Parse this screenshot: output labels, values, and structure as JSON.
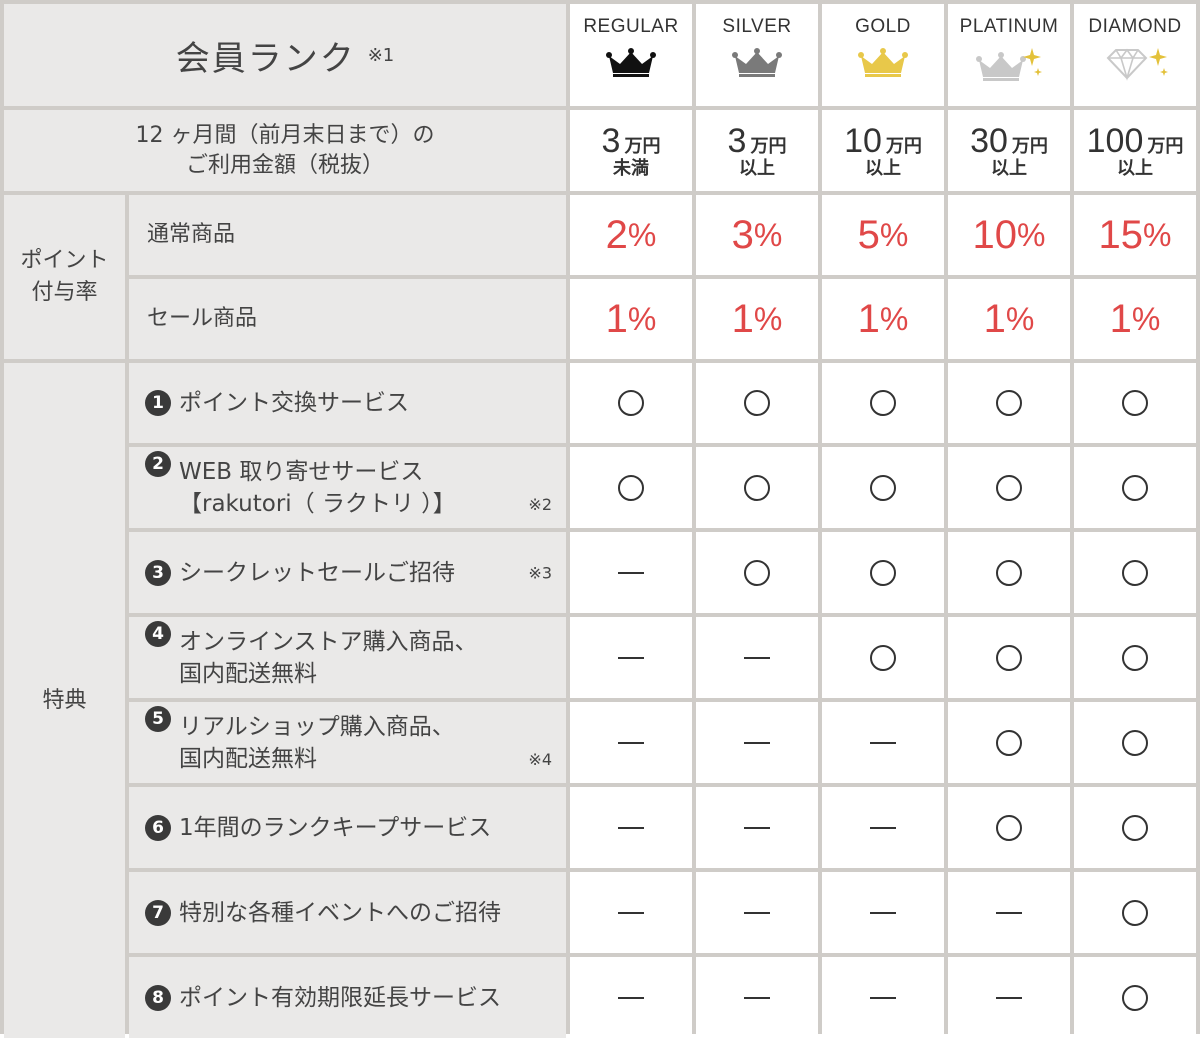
{
  "header": {
    "rank_title": "会員ランク",
    "rank_note": "※1",
    "ranks": [
      {
        "name": "REGULAR",
        "icon": "crown-icon",
        "color": "#111111"
      },
      {
        "name": "SILVER",
        "icon": "crown-icon",
        "color": "#7a7a7a"
      },
      {
        "name": "GOLD",
        "icon": "crown-icon",
        "color": "#e8c84a"
      },
      {
        "name": "PLATINUM",
        "icon": "crown-sparkle-icon",
        "color": "#c8c8c8"
      },
      {
        "name": "DIAMOND",
        "icon": "diamond-sparkle-icon",
        "color": "#d0d0d0"
      }
    ]
  },
  "amount": {
    "label_line1": "12 ヶ月間（前月末日まで）の",
    "label_line2": "ご利用金額（税抜）",
    "values": [
      {
        "num": "3",
        "unit": "万円",
        "cond": "未満"
      },
      {
        "num": "3",
        "unit": "万円",
        "cond": "以上"
      },
      {
        "num": "10",
        "unit": "万円",
        "cond": "以上"
      },
      {
        "num": "30",
        "unit": "万円",
        "cond": "以上"
      },
      {
        "num": "100",
        "unit": "万円",
        "cond": "以上"
      }
    ]
  },
  "points": {
    "label_line1": "ポイント",
    "label_line2": "付与率",
    "rows": [
      {
        "label": "通常商品",
        "rates": [
          "2",
          "3",
          "5",
          "10",
          "15"
        ]
      },
      {
        "label": "セール商品",
        "rates": [
          "1",
          "1",
          "1",
          "1",
          "1"
        ]
      }
    ],
    "pct": "%"
  },
  "benefits": {
    "label": "特典",
    "rows": [
      {
        "num": "1",
        "line1": "ポイント交換サービス",
        "line2": "",
        "note": "",
        "marks": [
          "o",
          "o",
          "o",
          "o",
          "o"
        ]
      },
      {
        "num": "2",
        "line1": "WEB 取り寄せサービス",
        "line2": "【rakutori（ ラクトリ ）】",
        "note": "※2",
        "marks": [
          "o",
          "o",
          "o",
          "o",
          "o"
        ]
      },
      {
        "num": "3",
        "line1": "シークレットセールご招待",
        "line2": "",
        "note": "※3",
        "marks": [
          "-",
          "o",
          "o",
          "o",
          "o"
        ]
      },
      {
        "num": "4",
        "line1": "オンラインストア購入商品、",
        "line2": "国内配送無料",
        "note": "",
        "marks": [
          "-",
          "-",
          "o",
          "o",
          "o"
        ]
      },
      {
        "num": "5",
        "line1": "リアルショップ購入商品、",
        "line2": "国内配送無料",
        "note": "※4",
        "marks": [
          "-",
          "-",
          "-",
          "o",
          "o"
        ]
      },
      {
        "num": "6",
        "line1": "1年間のランクキープサービス",
        "line2": "",
        "note": "",
        "marks": [
          "-",
          "-",
          "-",
          "o",
          "o"
        ]
      },
      {
        "num": "7",
        "line1": "特別な各種イベントへのご招待",
        "line2": "",
        "note": "",
        "marks": [
          "-",
          "-",
          "-",
          "-",
          "o"
        ]
      },
      {
        "num": "8",
        "line1": "ポイント有効期限延長サービス",
        "line2": "",
        "note": "",
        "marks": [
          "-",
          "-",
          "-",
          "-",
          "o"
        ]
      }
    ]
  }
}
